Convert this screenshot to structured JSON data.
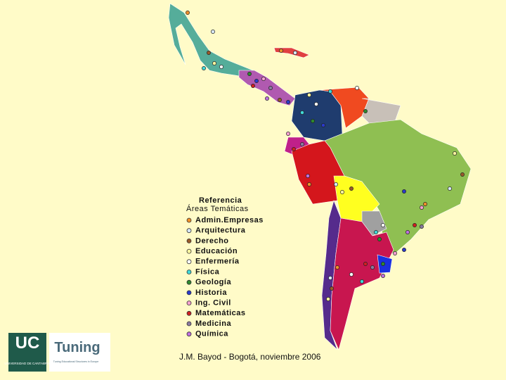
{
  "legend": {
    "title": "Referencia",
    "subtitle": "Áreas Temáticas",
    "items": [
      {
        "label": "Admin.Empresas",
        "color": "#f0902a"
      },
      {
        "label": "Arquitectura",
        "color": "#d8e8f8"
      },
      {
        "label": "Derecho",
        "color": "#9a5a2a"
      },
      {
        "label": "Educación",
        "color": "#fff7a0"
      },
      {
        "label": "Enfermería",
        "color": "#ffffff"
      },
      {
        "label": "Física",
        "color": "#40d8d8"
      },
      {
        "label": "Geología",
        "color": "#2e8a2e"
      },
      {
        "label": "Historia",
        "color": "#2a3acb"
      },
      {
        "label": "Ing. Civil",
        "color": "#f4a0d0"
      },
      {
        "label": "Matemáticas",
        "color": "#d02020"
      },
      {
        "label": "Medicina",
        "color": "#8a7aa0"
      },
      {
        "label": "Química",
        "color": "#c070e0"
      }
    ]
  },
  "footer": {
    "credit": "J.M. Bayod - Bogotá, noviembre 2006"
  },
  "logos": {
    "uc": "UC",
    "uc_name": "UNIVERSIDAD DE CANTABRIA",
    "tuning": "Tuning",
    "tuning_sub": "Tuning Educational Structures in Europe"
  }
}
